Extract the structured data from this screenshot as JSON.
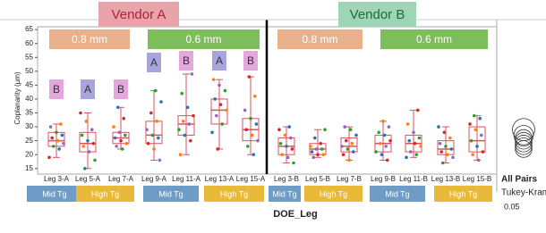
{
  "chart_data": {
    "type": "box",
    "y_label": "Coplanarity (µm)",
    "x_label": "DOE_Leg",
    "categories": [
      "Leg 3-A",
      "Leg 5-A",
      "Leg 7-A",
      "Leg 9-A",
      "Leg 11-A",
      "Leg 13-A",
      "Leg 15-A",
      "Leg 3-B",
      "Leg 5-B",
      "Leg 7-B",
      "Leg 9-B",
      "Leg 11-B",
      "Leg 13-B",
      "Leg 15-B"
    ],
    "ylim": [
      13,
      66
    ],
    "yticks": [
      15,
      20,
      25,
      30,
      35,
      40,
      45,
      50,
      55,
      60,
      65
    ],
    "box_color": "#d9535f",
    "point_colors": [
      "#d62728",
      "#1f77b4",
      "#2ca02c",
      "#9467bd",
      "#ff7f0e"
    ],
    "boxes": [
      {
        "min": 19,
        "q1": 23,
        "median": 25,
        "q3": 28,
        "max": 31
      },
      {
        "min": 15,
        "q1": 21,
        "median": 24,
        "q3": 28,
        "max": 35
      },
      {
        "min": 22,
        "q1": 24,
        "median": 26,
        "q3": 28,
        "max": 37
      },
      {
        "min": 18,
        "q1": 24,
        "median": 27,
        "q3": 32,
        "max": 43
      },
      {
        "min": 20,
        "q1": 27,
        "median": 31,
        "q3": 34,
        "max": 49
      },
      {
        "min": 22,
        "q1": 31,
        "median": 36,
        "q3": 40,
        "max": 47
      },
      {
        "min": 20,
        "q1": 25,
        "median": 29,
        "q3": 33,
        "max": 48
      },
      {
        "min": 17,
        "q1": 20,
        "median": 23,
        "q3": 26,
        "max": 30
      },
      {
        "min": 19,
        "q1": 20,
        "median": 22,
        "q3": 24,
        "max": 29
      },
      {
        "min": 18,
        "q1": 21,
        "median": 23,
        "q3": 26,
        "max": 30
      },
      {
        "min": 18,
        "q1": 21,
        "median": 24,
        "q3": 27,
        "max": 32
      },
      {
        "min": 19,
        "q1": 21,
        "median": 24,
        "q3": 27,
        "max": 36
      },
      {
        "min": 17,
        "q1": 20,
        "median": 22,
        "q3": 25,
        "max": 30
      },
      {
        "min": 18,
        "q1": 21,
        "median": 25,
        "q3": 30,
        "max": 34
      }
    ],
    "points": [
      [
        19,
        22,
        23,
        24,
        25,
        26,
        27,
        28,
        30,
        31
      ],
      [
        15,
        18,
        21,
        23,
        24,
        25,
        27,
        29,
        32,
        35
      ],
      [
        22,
        23,
        24,
        25,
        26,
        27,
        28,
        30,
        33,
        37
      ],
      [
        18,
        22,
        24,
        26,
        27,
        29,
        32,
        35,
        39,
        43
      ],
      [
        20,
        25,
        27,
        29,
        31,
        32,
        34,
        37,
        42,
        49
      ],
      [
        22,
        28,
        31,
        34,
        36,
        38,
        40,
        43,
        45,
        47
      ],
      [
        20,
        23,
        25,
        27,
        29,
        31,
        33,
        36,
        41,
        48
      ],
      [
        17,
        19,
        20,
        22,
        23,
        24,
        26,
        27,
        29,
        30
      ],
      [
        19,
        20,
        20,
        21,
        22,
        22,
        23,
        24,
        26,
        29
      ],
      [
        18,
        20,
        21,
        22,
        23,
        24,
        25,
        27,
        29,
        30
      ],
      [
        18,
        20,
        21,
        23,
        24,
        25,
        27,
        28,
        30,
        32
      ],
      [
        19,
        20,
        21,
        23,
        24,
        25,
        26,
        28,
        31,
        36
      ],
      [
        17,
        19,
        20,
        21,
        22,
        23,
        24,
        26,
        28,
        30
      ],
      [
        18,
        20,
        21,
        23,
        25,
        27,
        29,
        31,
        33,
        34
      ]
    ],
    "vendor_labels": [
      "Vendor A",
      "Vendor B"
    ],
    "pitch_labels": [
      "0.8 mm",
      "0.6 mm",
      "0.8 mm",
      "0.6 mm"
    ],
    "tg_labels": [
      "Mid Tg",
      "High Tg",
      "Mid Tg",
      "High Tg",
      "Mid Tg",
      "High Tg",
      "Mid Tg",
      "High Tg"
    ],
    "letters": [
      "B",
      "A",
      "B",
      "A",
      "B",
      "A",
      "B"
    ],
    "comparison": {
      "title": "All Pairs",
      "method": "Tukey-Kramer",
      "alpha": 0.05,
      "circles": [
        {
          "center": 29,
          "radius": 4
        },
        {
          "center": 27,
          "radius": 3.5
        },
        {
          "center": 26,
          "radius": 3
        },
        {
          "center": 25,
          "radius": 3
        },
        {
          "center": 24,
          "radius": 3
        },
        {
          "center": 23,
          "radius": 3
        },
        {
          "center": 22,
          "radius": 3
        }
      ]
    }
  }
}
